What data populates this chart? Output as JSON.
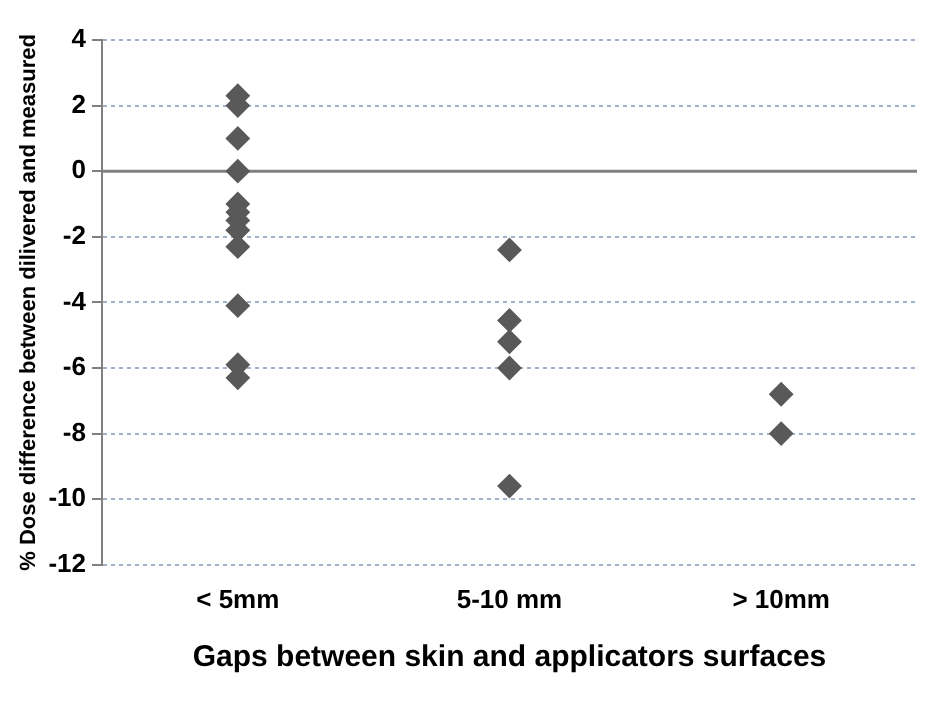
{
  "chart_data": {
    "type": "scatter",
    "xlabel": "Gaps between skin and applicators surfaces",
    "ylabel": "% Dose difference between dilivered and measured",
    "categories": [
      "< 5mm",
      "5-10 mm",
      "> 10mm"
    ],
    "series": [
      {
        "type": "scatter",
        "color": "#595959",
        "x": [
          "< 5mm",
          "< 5mm",
          "< 5mm",
          "< 5mm",
          "< 5mm",
          "< 5mm",
          "< 5mm",
          "< 5mm",
          "< 5mm",
          "< 5mm",
          "< 5mm",
          "< 5mm",
          "5-10 mm",
          "5-10 mm",
          "5-10 mm",
          "5-10 mm",
          "5-10 mm",
          "> 10mm",
          "> 10mm"
        ],
        "values": [
          2.3,
          2.0,
          1.0,
          0,
          -1.0,
          -1.25,
          -1.5,
          -1.8,
          -2.3,
          -4.1,
          -5.9,
          -6.3,
          -2.4,
          -4.55,
          -5.2,
          -6.0,
          -9.6,
          -6.8,
          -8.0
        ]
      }
    ],
    "ylim": [
      -12,
      4
    ],
    "yticks": [
      -12,
      -10,
      -8,
      -6,
      -4,
      -2,
      0,
      2,
      4
    ],
    "grid": "y",
    "marker": "diamond",
    "ref_lines": [
      {
        "axis": "y",
        "value": 0,
        "color": "#808080"
      }
    ]
  }
}
